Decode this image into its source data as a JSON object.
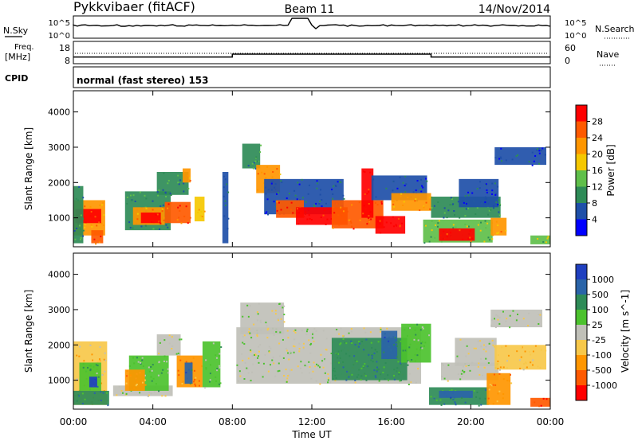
{
  "header": {
    "station": "Pykkvibaer (fitACF)",
    "beam": "Beam 11",
    "date": "14/Nov/2014"
  },
  "sky_panel": {
    "left_label": "N.Sky",
    "right_label": "N.Search",
    "left_ticks": [
      "10^5",
      "10^0"
    ],
    "right_ticks": [
      "10^5",
      "10^0"
    ]
  },
  "freq_panel": {
    "left_label_top": "Freq.",
    "left_label_bottom": "[MHz]",
    "right_label": "Nave",
    "left_ticks": [
      "18",
      "8"
    ],
    "right_ticks": [
      "60",
      "0"
    ],
    "freq_values_mhz": [
      {
        "t": 0,
        "f": 11.0
      },
      {
        "t": 8,
        "f": 11.0
      },
      {
        "t": 8,
        "f": 12.3
      },
      {
        "t": 18,
        "f": 12.3
      },
      {
        "t": 18,
        "f": 11.0
      },
      {
        "t": 24,
        "f": 11.0
      }
    ]
  },
  "cpid": {
    "label": "CPID",
    "mode": "normal (fast stereo) 153"
  },
  "chart_data": [
    {
      "type": "heatmap",
      "name": "power",
      "ylabel": "Slant Range [km]",
      "ylim": [
        180,
        4600
      ],
      "yticks": [
        1000,
        2000,
        3000,
        4000
      ],
      "xlim": [
        0,
        24
      ],
      "colorbar": {
        "label": "Power [dB]",
        "ticks": [
          "28",
          "24",
          "20",
          "16",
          "12",
          "8",
          "4"
        ],
        "colors": [
          "#ff0000",
          "#ff5a00",
          "#ff9600",
          "#f5c800",
          "#5fbf4a",
          "#2e8b57",
          "#1e4fa8",
          "#0000ff"
        ]
      },
      "regions": [
        {
          "t0": 0.0,
          "t1": 1.6,
          "r0": 500,
          "r1": 1500,
          "level": 2
        },
        {
          "t0": 0.1,
          "t1": 1.4,
          "r0": 850,
          "r1": 1250,
          "level": 0
        },
        {
          "t0": 0.0,
          "t1": 0.5,
          "r0": 280,
          "r1": 1900,
          "level": 5
        },
        {
          "t0": 0.9,
          "t1": 1.5,
          "r0": 280,
          "r1": 650,
          "level": 1
        },
        {
          "t0": 2.6,
          "t1": 4.9,
          "r0": 650,
          "r1": 1750,
          "level": 5
        },
        {
          "t0": 3.0,
          "t1": 4.6,
          "r0": 800,
          "r1": 1300,
          "level": 2
        },
        {
          "t0": 3.4,
          "t1": 4.4,
          "r0": 850,
          "r1": 1150,
          "level": 0
        },
        {
          "t0": 4.6,
          "t1": 5.9,
          "r0": 850,
          "r1": 1450,
          "level": 1
        },
        {
          "t0": 4.2,
          "t1": 5.8,
          "r0": 1650,
          "r1": 2300,
          "level": 5
        },
        {
          "t0": 5.5,
          "t1": 5.9,
          "r0": 2000,
          "r1": 2400,
          "level": 2
        },
        {
          "t0": 6.1,
          "t1": 6.6,
          "r0": 900,
          "r1": 1600,
          "level": 3
        },
        {
          "t0": 7.5,
          "t1": 7.8,
          "r0": 280,
          "r1": 2300,
          "level": 6
        },
        {
          "t0": 8.5,
          "t1": 9.4,
          "r0": 2400,
          "r1": 3100,
          "level": 5
        },
        {
          "t0": 9.2,
          "t1": 10.4,
          "r0": 1700,
          "r1": 2500,
          "level": 2
        },
        {
          "t0": 9.6,
          "t1": 13.6,
          "r0": 1100,
          "r1": 2100,
          "level": 6
        },
        {
          "t0": 10.2,
          "t1": 11.6,
          "r0": 1000,
          "r1": 1500,
          "level": 1
        },
        {
          "t0": 11.2,
          "t1": 13.8,
          "r0": 800,
          "r1": 1300,
          "level": 0
        },
        {
          "t0": 13.0,
          "t1": 15.6,
          "r0": 700,
          "r1": 1500,
          "level": 1
        },
        {
          "t0": 14.5,
          "t1": 15.1,
          "r0": 1000,
          "r1": 2400,
          "level": 0
        },
        {
          "t0": 15.2,
          "t1": 16.7,
          "r0": 550,
          "r1": 1050,
          "level": 0
        },
        {
          "t0": 15.0,
          "t1": 17.8,
          "r0": 1500,
          "r1": 2200,
          "level": 6
        },
        {
          "t0": 16.0,
          "t1": 18.0,
          "r0": 1200,
          "r1": 1700,
          "level": 2
        },
        {
          "t0": 17.6,
          "t1": 21.1,
          "r0": 300,
          "r1": 950,
          "level": 4
        },
        {
          "t0": 18.4,
          "t1": 20.2,
          "r0": 350,
          "r1": 700,
          "level": 0
        },
        {
          "t0": 18.0,
          "t1": 21.5,
          "r0": 1000,
          "r1": 1600,
          "level": 5
        },
        {
          "t0": 19.4,
          "t1": 21.4,
          "r0": 1300,
          "r1": 2100,
          "level": 6
        },
        {
          "t0": 21.2,
          "t1": 23.8,
          "r0": 2500,
          "r1": 3000,
          "level": 6
        },
        {
          "t0": 21.0,
          "t1": 21.8,
          "r0": 500,
          "r1": 1000,
          "level": 2
        },
        {
          "t0": 23.0,
          "t1": 24.0,
          "r0": 250,
          "r1": 500,
          "level": 4
        }
      ]
    },
    {
      "type": "heatmap",
      "name": "velocity",
      "ylabel": "Slant Range [km]",
      "ylim": [
        180,
        4600
      ],
      "yticks": [
        1000,
        2000,
        3000,
        4000
      ],
      "xlim": [
        0,
        24
      ],
      "colorbar": {
        "label": "Velocity [m s^-1]",
        "ticks": [
          "1000",
          "500",
          "100",
          "25",
          "-25",
          "-100",
          "-500",
          "-1000"
        ],
        "colors": [
          "#1f3fbf",
          "#2a64a8",
          "#2e8b57",
          "#4cc22e",
          "#c0c0b8",
          "#f7c84a",
          "#ff9600",
          "#ff5a00",
          "#ff0000"
        ]
      },
      "regions": [
        {
          "t0": 0.0,
          "t1": 1.7,
          "r0": 300,
          "r1": 2100,
          "level": 5
        },
        {
          "t0": 0.3,
          "t1": 1.4,
          "r0": 700,
          "r1": 1500,
          "level": 3
        },
        {
          "t0": 0.8,
          "t1": 1.2,
          "r0": 800,
          "r1": 1100,
          "level": 0
        },
        {
          "t0": 0.0,
          "t1": 1.8,
          "r0": 300,
          "r1": 700,
          "level": 2
        },
        {
          "t0": 2.0,
          "t1": 5.0,
          "r0": 550,
          "r1": 850,
          "level": 4
        },
        {
          "t0": 2.8,
          "t1": 4.8,
          "r0": 700,
          "r1": 1700,
          "level": 3
        },
        {
          "t0": 2.6,
          "t1": 3.6,
          "r0": 700,
          "r1": 1300,
          "level": 6
        },
        {
          "t0": 4.2,
          "t1": 5.4,
          "r0": 1700,
          "r1": 2300,
          "level": 4
        },
        {
          "t0": 5.2,
          "t1": 6.5,
          "r0": 800,
          "r1": 1700,
          "level": 6
        },
        {
          "t0": 5.6,
          "t1": 6.0,
          "r0": 900,
          "r1": 1500,
          "level": 1
        },
        {
          "t0": 6.5,
          "t1": 7.4,
          "r0": 800,
          "r1": 2100,
          "level": 3
        },
        {
          "t0": 8.2,
          "t1": 17.5,
          "r0": 900,
          "r1": 2500,
          "level": 4
        },
        {
          "t0": 8.4,
          "t1": 10.6,
          "r0": 2300,
          "r1": 3200,
          "level": 4
        },
        {
          "t0": 13.0,
          "t1": 16.8,
          "r0": 1000,
          "r1": 2200,
          "level": 2
        },
        {
          "t0": 15.5,
          "t1": 16.3,
          "r0": 1600,
          "r1": 2400,
          "level": 1
        },
        {
          "t0": 16.5,
          "t1": 18.0,
          "r0": 1500,
          "r1": 2600,
          "level": 3
        },
        {
          "t0": 17.9,
          "t1": 20.9,
          "r0": 300,
          "r1": 800,
          "level": 2
        },
        {
          "t0": 18.4,
          "t1": 20.1,
          "r0": 500,
          "r1": 700,
          "level": 1
        },
        {
          "t0": 18.5,
          "t1": 21.4,
          "r0": 1000,
          "r1": 1500,
          "level": 4
        },
        {
          "t0": 19.2,
          "t1": 21.3,
          "r0": 1400,
          "r1": 2200,
          "level": 4
        },
        {
          "t0": 20.8,
          "t1": 22.0,
          "r0": 300,
          "r1": 1200,
          "level": 6
        },
        {
          "t0": 21.0,
          "t1": 23.6,
          "r0": 2500,
          "r1": 3000,
          "level": 4
        },
        {
          "t0": 21.2,
          "t1": 23.8,
          "r0": 1300,
          "r1": 2000,
          "level": 5
        },
        {
          "t0": 23.0,
          "t1": 24.0,
          "r0": 250,
          "r1": 500,
          "level": 7
        }
      ]
    }
  ],
  "xaxis": {
    "label": "Time UT",
    "ticks": [
      "00:00",
      "04:00",
      "08:00",
      "12:00",
      "16:00",
      "20:00",
      "00:00"
    ]
  }
}
